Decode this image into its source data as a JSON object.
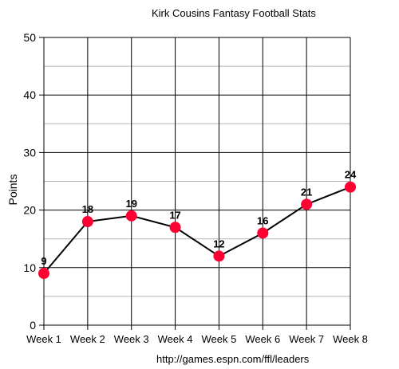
{
  "chart_data": {
    "type": "line",
    "title": "Kirk Cousins Fantasy Football Stats",
    "ylabel": "Points",
    "xlabel": "",
    "source": "http://games.espn.com/ffl/leaders",
    "categories": [
      "Week 1",
      "Week 2",
      "Week 3",
      "Week 4",
      "Week 5",
      "Week 6",
      "Week 7",
      "Week 8"
    ],
    "series": [
      {
        "values": [
          9,
          18,
          19,
          17,
          12,
          16,
          21,
          24
        ]
      }
    ],
    "ylim": [
      0,
      50
    ],
    "yticks": [
      0,
      10,
      20,
      30,
      40,
      50
    ],
    "grid": true,
    "line_color": "#000000",
    "marker_color": "#ff0033",
    "data_labels": true
  }
}
